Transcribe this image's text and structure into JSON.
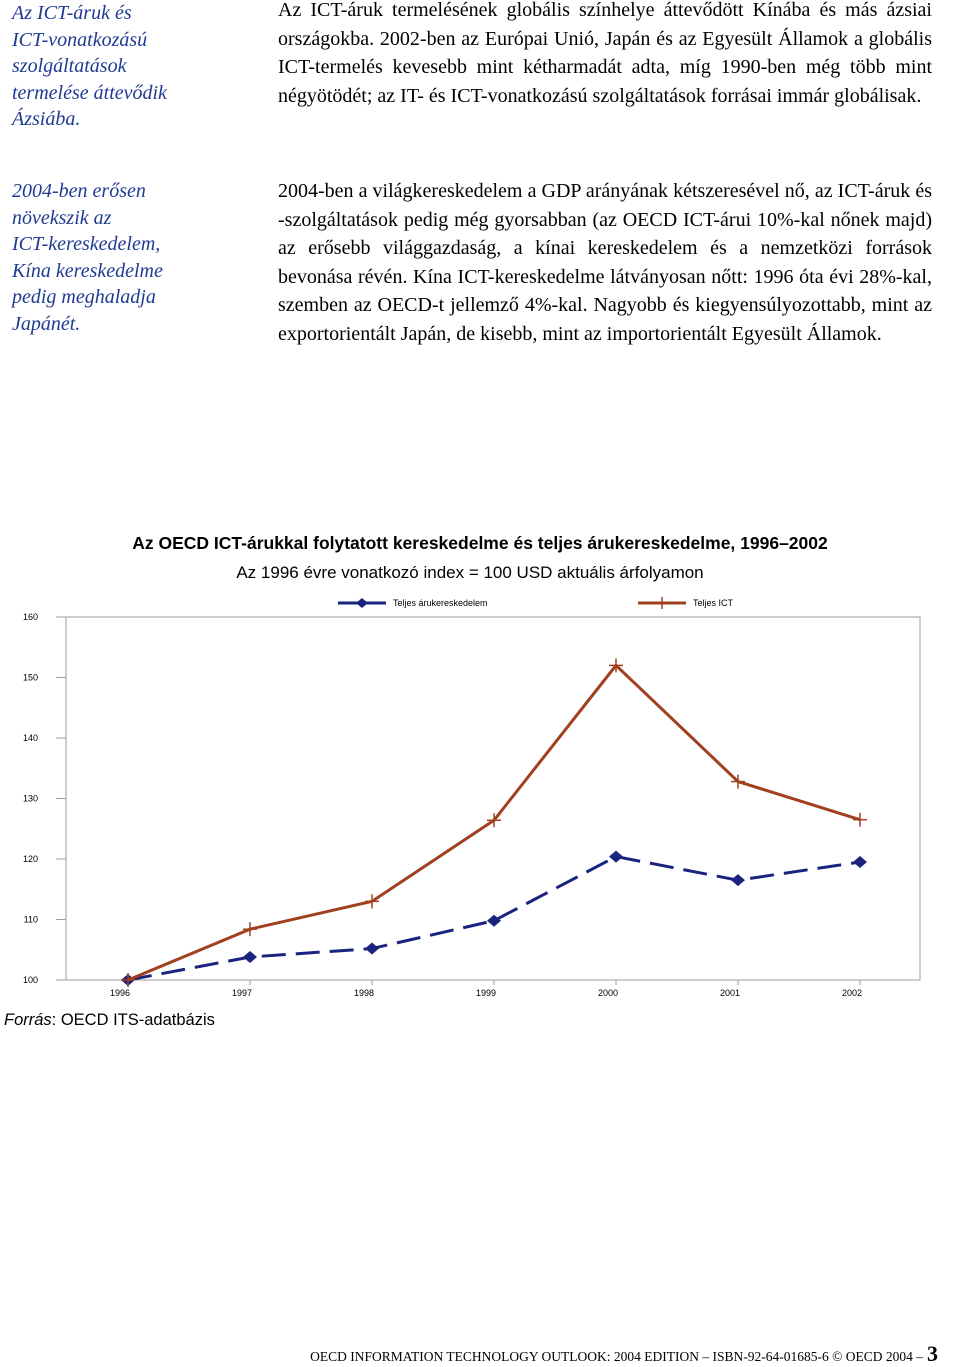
{
  "sidenotes": [
    {
      "lines": [
        "Az ICT-áruk és",
        "ICT-vonatkozású",
        "szolgáltatások",
        "termelése áttevődik",
        "Ázsiába."
      ]
    },
    {
      "lines": [
        "2004-ben erősen",
        "növekszik az",
        "ICT-kereskedelem,",
        "Kína kereskedelme",
        "pedig meghaladja",
        "Japánét."
      ]
    }
  ],
  "paragraphs": [
    "Az ICT-áruk termelésének globális színhelye áttevődött Kínába és más ázsiai országokba. 2002-ben az Európai Unió, Japán és az Egyesült Államok a globális ICT-termelés kevesebb mint kétharmadát adta, míg 1990-ben még több mint négyötödét; az IT- és ICT-vonatkozású szolgáltatások forrásai immár globálisak.",
    "2004-ben a világkereskedelem a GDP arányának kétszeresével nő, az ICT-áruk és -szolgáltatások pedig még gyorsabban (az OECD ICT-árui 10%-kal nőnek majd) az erősebb világgazdaság, a kínai kereskedelem és a nemzetközi források bevonása révén. Kína ICT-kereskedelme látványosan nőtt: 1996 óta évi 28%-kal, szemben az OECD-t jellemző 4%-kal. Nagyobb és kiegyensúlyozottabb, mint az exportorientált Japán, de kisebb, mint az importorientált Egyesült Államok."
  ],
  "chart_data": {
    "type": "line",
    "title": "Az OECD ICT-árukkal folytatott kereskedelme és teljes árukereskedelme, 1996–2002",
    "subtitle": "Az 1996 évre vonatkozó index = 100 USD aktuális árfolyamon",
    "categories": [
      "1996",
      "1997",
      "1998",
      "1999",
      "2000",
      "2001",
      "2002"
    ],
    "yticks": [
      "100",
      "110",
      "120",
      "130",
      "140",
      "150",
      "160"
    ],
    "ylim": [
      100,
      160
    ],
    "grid": false,
    "legend_position": "top",
    "series": [
      {
        "name": "Teljes árukereskedelem",
        "values": [
          100,
          103.8,
          105.2,
          109.8,
          120.4,
          116.5,
          119.5
        ],
        "color": "#1a237e",
        "style": "dashed",
        "marker": "diamond"
      },
      {
        "name": "Teljes ICT",
        "values": [
          100,
          108.4,
          113.0,
          126.4,
          152.0,
          132.8,
          126.5
        ],
        "color": "#a0401e",
        "style": "solid",
        "marker": "plus"
      }
    ]
  },
  "source": {
    "label": "Forrás",
    "text": ": OECD ITS-adatbázis"
  },
  "footer": {
    "text": "OECD INFORMATION TECHNOLOGY OUTLOOK: 2004 EDITION – ISBN-92-64-01685-6 © OECD 2004 –",
    "page": "3"
  }
}
